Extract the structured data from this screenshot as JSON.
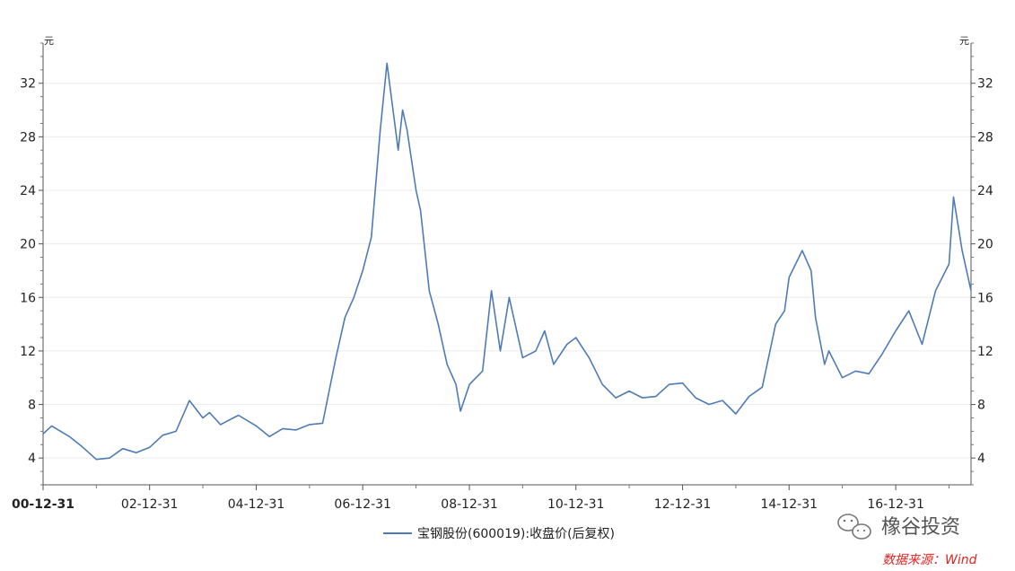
{
  "chart_data": {
    "type": "line",
    "y_unit": "元",
    "ylim": [
      2,
      35
    ],
    "y_ticks": [
      4,
      8,
      12,
      16,
      20,
      24,
      28,
      32
    ],
    "x_ticks": [
      "00-12-31",
      "02-12-31",
      "04-12-31",
      "06-12-31",
      "08-12-31",
      "10-12-31",
      "12-12-31",
      "14-12-31",
      "16-12-31"
    ],
    "x_start": "2000-12-31",
    "x_end": "2018-05-31",
    "grid": true,
    "legend_position": "bottom",
    "series": [
      {
        "name": "宝钢股份(600019):收盘价(后复权)",
        "color": "#4f7bb5",
        "x": [
          "2000-12-31",
          "2001-02-28",
          "2001-06-30",
          "2001-09-30",
          "2001-12-31",
          "2002-03-31",
          "2002-06-30",
          "2002-09-30",
          "2002-12-31",
          "2003-03-31",
          "2003-06-30",
          "2003-09-30",
          "2003-12-31",
          "2004-02-15",
          "2004-04-30",
          "2004-08-31",
          "2004-12-31",
          "2005-03-31",
          "2005-06-30",
          "2005-09-30",
          "2005-12-31",
          "2006-03-31",
          "2006-06-30",
          "2006-08-31",
          "2006-10-31",
          "2006-12-31",
          "2007-02-28",
          "2007-04-30",
          "2007-06-15",
          "2007-08-31",
          "2007-09-30",
          "2007-10-31",
          "2007-12-31",
          "2008-01-31",
          "2008-03-31",
          "2008-05-31",
          "2008-07-31",
          "2008-09-30",
          "2008-10-31",
          "2008-12-31",
          "2009-03-31",
          "2009-05-31",
          "2009-07-31",
          "2009-09-30",
          "2009-12-31",
          "2010-03-31",
          "2010-05-31",
          "2010-07-31",
          "2010-10-31",
          "2010-12-31",
          "2011-03-31",
          "2011-06-30",
          "2011-09-30",
          "2011-12-31",
          "2012-03-31",
          "2012-06-30",
          "2012-09-30",
          "2012-12-31",
          "2013-03-31",
          "2013-06-30",
          "2013-09-30",
          "2013-12-31",
          "2014-03-31",
          "2014-06-30",
          "2014-09-30",
          "2014-11-30",
          "2014-12-31",
          "2015-03-31",
          "2015-05-31",
          "2015-06-30",
          "2015-08-31",
          "2015-09-30",
          "2015-12-31",
          "2016-03-31",
          "2016-06-30",
          "2016-09-30",
          "2016-12-31",
          "2017-03-31",
          "2017-06-30",
          "2017-09-30",
          "2017-12-31",
          "2018-01-31",
          "2018-03-31",
          "2018-05-31"
        ],
        "values": [
          5.8,
          6.4,
          5.6,
          4.8,
          3.9,
          4.0,
          4.7,
          4.4,
          4.8,
          5.7,
          6.0,
          8.3,
          7.0,
          7.4,
          6.5,
          7.2,
          6.4,
          5.6,
          6.2,
          6.1,
          6.5,
          6.6,
          11.5,
          14.5,
          16.0,
          18.0,
          20.5,
          28.5,
          33.5,
          27.0,
          30.0,
          28.5,
          24.0,
          22.5,
          16.5,
          14.0,
          11.0,
          9.5,
          7.5,
          9.5,
          10.5,
          16.5,
          12.0,
          16.0,
          11.5,
          12.0,
          13.5,
          11.0,
          12.5,
          13.0,
          11.5,
          9.5,
          8.5,
          9.0,
          8.5,
          8.6,
          9.5,
          9.6,
          8.5,
          8.0,
          8.3,
          7.3,
          8.6,
          9.3,
          14.0,
          15.0,
          17.5,
          19.5,
          18.0,
          14.5,
          11.0,
          12.0,
          10.0,
          10.5,
          10.3,
          11.8,
          13.5,
          15.0,
          12.5,
          16.5,
          18.5,
          23.5,
          19.5,
          16.5
        ]
      }
    ],
    "source": "数据来源：Wind",
    "brand": "橡谷投资"
  }
}
